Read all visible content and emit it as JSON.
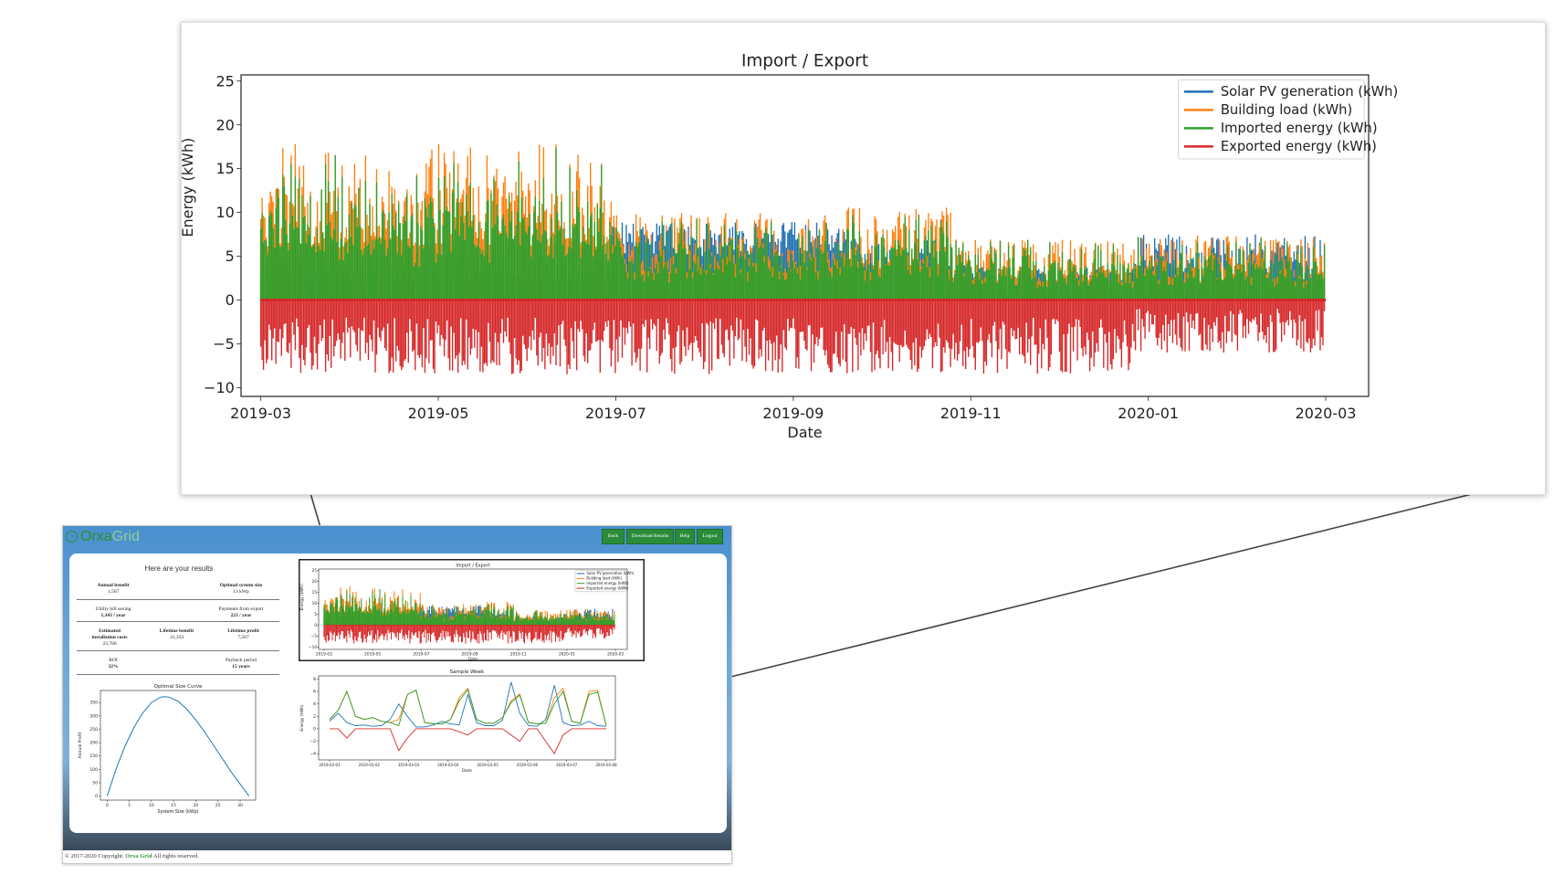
{
  "zoom": {
    "title": "Import / Export",
    "xlabel": "Date",
    "ylabel": "Energy (kWh)",
    "yticks": [
      "25",
      "20",
      "15",
      "10",
      "5",
      "0",
      "−5",
      "−10"
    ],
    "xticks": [
      "2019-03",
      "2019-05",
      "2019-07",
      "2019-09",
      "2019-11",
      "2020-01",
      "2020-03"
    ],
    "legend": [
      {
        "label": "Solar PV generation (kWh)",
        "color": "#1f6fb4"
      },
      {
        "label": "Building load (kWh)",
        "color": "#ff7f0e"
      },
      {
        "label": "Imported energy (kWh)",
        "color": "#2ca02c"
      },
      {
        "label": "Exported energy (kWh)",
        "color": "#d62728"
      }
    ]
  },
  "app": {
    "logo_primary": "Orxa",
    "logo_secondary": "Grid",
    "nav": {
      "back": "Back",
      "download": "Download Results",
      "help": "Help",
      "logout": "Logout"
    },
    "results_title": "Here are your results",
    "results": {
      "annual_benefit_label": "Annual benefit",
      "annual_benefit_value": "1,567",
      "optimal_size_label": "Optimal system size",
      "optimal_size_value": "13 kWp",
      "bill_saving_label": "Utility bill saving",
      "bill_saving_value": "1,343 / year",
      "export_payments_label": "Payments from export",
      "export_payments_value": "223 / year",
      "install_costs_label_1": "Estimated",
      "install_costs_label_2": "installation costs",
      "install_costs_value": "23,766",
      "lifetime_benefit_label": "Lifetime benefit",
      "lifetime_benefit_value": "31,333",
      "lifetime_profit_label": "Lifetime profit",
      "lifetime_profit_value": "7,567",
      "roi_label": "ROI",
      "roi_value": "32%",
      "payback_label": "Payback period",
      "payback_value": "15 years"
    },
    "footer_prefix": "© 2017-2020 Copyright:",
    "footer_brand": "Orxa Grid",
    "footer_suffix": "All rights reserved."
  },
  "chart_data": [
    {
      "type": "line",
      "title": "Optimal Size Curve",
      "xlabel": "System Size (kWp)",
      "ylabel": "Annual Profit",
      "x": [
        0,
        2,
        4,
        6,
        8,
        10,
        12,
        13,
        14,
        16,
        18,
        20,
        22,
        24,
        26,
        28,
        30,
        32
      ],
      "y": [
        0,
        100,
        185,
        255,
        310,
        350,
        370,
        372,
        370,
        355,
        325,
        285,
        240,
        190,
        140,
        90,
        45,
        0
      ],
      "xticks": [
        0,
        5,
        10,
        15,
        20,
        25,
        30
      ],
      "yticks": [
        0,
        50,
        100,
        150,
        200,
        250,
        300,
        350
      ],
      "xlim": [
        -1.5,
        33.5
      ],
      "ylim": [
        -15,
        395
      ],
      "series_color": "#1f77b4"
    },
    {
      "type": "line",
      "title": "Sample Week",
      "xlabel": "Date",
      "ylabel": "Energy (kWh)",
      "xticks": [
        "2019-03-01",
        "2019-03-02",
        "2019-03-03",
        "2019-03-04",
        "2019-03-05",
        "2019-03-06",
        "2019-03-07",
        "2019-03-08"
      ],
      "yticks": [
        -4,
        -2,
        0,
        2,
        4,
        6,
        8
      ],
      "ylim": [
        -5,
        8.5
      ],
      "series": [
        {
          "color": "#1f77b4",
          "values": [
            1.2,
            2.5,
            1.0,
            0.5,
            0.6,
            0.4,
            0.5,
            1.5,
            4.0,
            2.0,
            0.3,
            0.3,
            0.6,
            1.2,
            0.8,
            0.6,
            5.5,
            1.0,
            0.5,
            0.5,
            1.4,
            7.5,
            2.5,
            0.5,
            0.4,
            1.5,
            7.0,
            1.0,
            0.5,
            0.6,
            1.2,
            0.5,
            0.4
          ]
        },
        {
          "color": "#ff7f0e",
          "values": [
            1.5,
            3.0,
            6.0,
            2.0,
            1.5,
            1.8,
            1.2,
            1.0,
            1.5,
            5.5,
            6.2,
            1.0,
            0.8,
            0.8,
            1.5,
            5.0,
            6.5,
            1.5,
            0.9,
            0.9,
            1.8,
            4.5,
            5.6,
            1.0,
            0.8,
            0.9,
            5.0,
            6.5,
            1.2,
            0.9,
            6.0,
            6.2,
            0.5
          ]
        },
        {
          "color": "#2ca02c",
          "values": [
            1.5,
            3.0,
            6.0,
            2.0,
            1.5,
            1.8,
            1.2,
            1.0,
            0.5,
            5.5,
            6.2,
            1.0,
            0.8,
            0.8,
            1.5,
            4.5,
            6.3,
            1.5,
            0.9,
            0.9,
            1.8,
            4.2,
            5.4,
            1.0,
            0.8,
            0.9,
            4.0,
            6.0,
            1.2,
            0.9,
            5.5,
            5.9,
            0.5
          ]
        },
        {
          "color": "#d62728",
          "values": [
            0,
            0,
            -1.5,
            0,
            0,
            0,
            0,
            0,
            -3.5,
            -1.5,
            0,
            0,
            0,
            0,
            0,
            -0.5,
            -1.0,
            0,
            0,
            0,
            0,
            -1.0,
            -2.0,
            0,
            0,
            -2.0,
            -4.0,
            -1.0,
            0,
            0,
            0,
            0,
            0
          ]
        }
      ]
    }
  ]
}
